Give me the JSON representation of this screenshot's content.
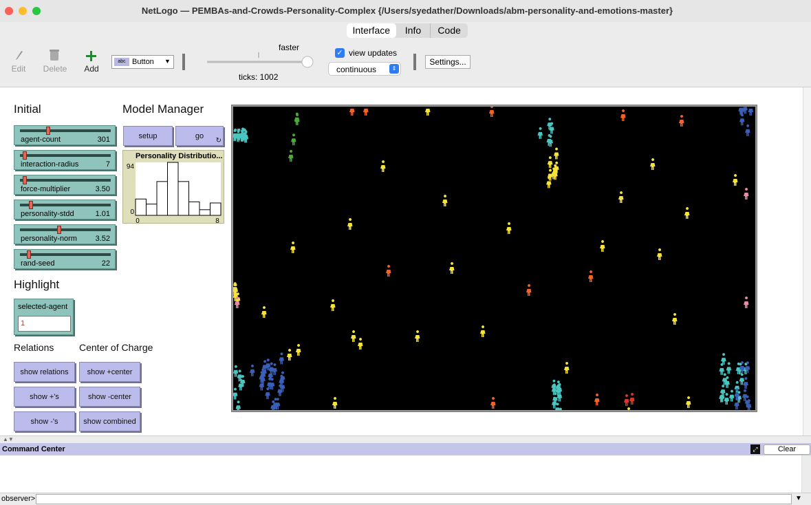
{
  "window": {
    "title": "NetLogo — PEMBAs-and-Crowds-Personality-Complex {/Users/syedather/Downloads/abm-personality-and-emotions-master}"
  },
  "tabs": [
    "Interface",
    "Info",
    "Code"
  ],
  "toolbar": {
    "edit": "Edit",
    "delete": "Delete",
    "add": "Add",
    "widget_type": "Button",
    "speed_label": "faster",
    "ticks": "ticks: 1002",
    "view_updates": "view updates",
    "update_mode": "continuous",
    "settings": "Settings..."
  },
  "sections": {
    "initial": "Initial",
    "model_manager": "Model Manager",
    "highlight": "Highlight",
    "relations": "Relations",
    "center_of_charge": "Center of Charge"
  },
  "sliders": [
    {
      "name": "agent-count",
      "value": "301"
    },
    {
      "name": "interaction-radius",
      "value": "7"
    },
    {
      "name": "force-multiplier",
      "value": "3.50"
    },
    {
      "name": "personality-stdd",
      "value": "1.01"
    },
    {
      "name": "personality-norm",
      "value": "3.52"
    },
    {
      "name": "rand-seed",
      "value": "22"
    }
  ],
  "buttons": {
    "setup": "setup",
    "go": "go"
  },
  "plot": {
    "title": "Personality Distributio...",
    "ylim": [
      0,
      94
    ],
    "xlim": [
      0,
      8
    ],
    "counts": [
      29,
      20,
      60,
      94,
      60,
      24,
      10,
      22
    ]
  },
  "input": {
    "name": "selected-agent",
    "value": "1"
  },
  "relation_buttons": [
    "show relations",
    "show +'s",
    "show -'s"
  ],
  "center_buttons": [
    "show +center",
    "show -center",
    "show combined"
  ],
  "command_center": {
    "title": "Command Center",
    "clear": "Clear",
    "prompt": "observer>"
  }
}
